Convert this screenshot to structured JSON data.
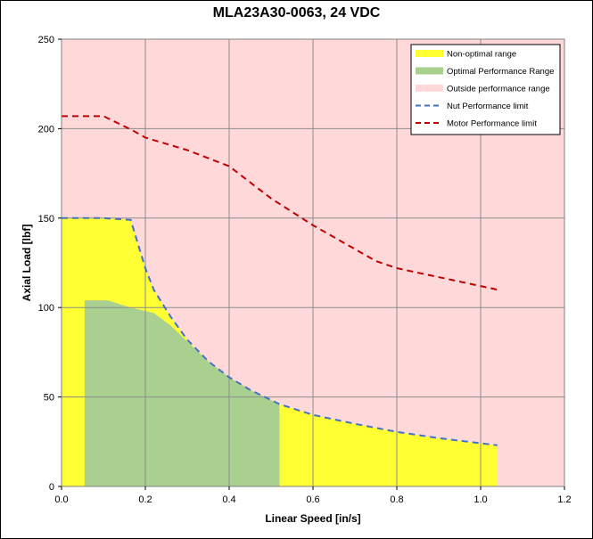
{
  "chart_data": {
    "type": "area",
    "title": "MLA23A30-0063, 24 VDC",
    "xlabel": "Linear Speed [in/s]",
    "ylabel": "Axial Load [lbf]",
    "xlim": [
      0,
      1.2
    ],
    "ylim": [
      0,
      250
    ],
    "x_ticks": [
      "0.0",
      "0.2",
      "0.4",
      "0.6",
      "0.8",
      "1.0",
      "1.2"
    ],
    "y_ticks": [
      "0",
      "50",
      "100",
      "150",
      "200",
      "250"
    ],
    "grid": true,
    "legend_position": "top-right",
    "series": [
      {
        "name": "Non-optimal range",
        "kind": "area",
        "color": "#ffff33",
        "x": [
          0,
          0.1,
          0.165,
          0.2,
          0.22,
          0.26,
          0.3,
          0.35,
          0.4,
          0.45,
          0.52,
          0.6,
          0.7,
          0.8,
          0.9,
          1.04
        ],
        "y": [
          150,
          150,
          149,
          122,
          110,
          95,
          82,
          70,
          61,
          54,
          46,
          40,
          35,
          30.5,
          27,
          23
        ]
      },
      {
        "name": "Optimal Performance Range",
        "kind": "area",
        "color": "#a9d08e",
        "x": [
          0.055,
          0.11,
          0.165,
          0.22,
          0.26,
          0.3,
          0.35,
          0.4,
          0.45,
          0.52
        ],
        "y": [
          104,
          104,
          100,
          97,
          90,
          81,
          70,
          61,
          54,
          46
        ]
      },
      {
        "name": "Outside performance range",
        "kind": "background",
        "color": "#ffd9d9"
      },
      {
        "name": "Nut Performance limit",
        "kind": "line",
        "style": "dashed",
        "color": "#4472c4",
        "x": [
          0,
          0.1,
          0.165,
          0.2,
          0.22,
          0.26,
          0.3,
          0.35,
          0.4,
          0.45,
          0.52,
          0.6,
          0.7,
          0.8,
          0.9,
          1.04
        ],
        "y": [
          150,
          150,
          149,
          122,
          110,
          95,
          82,
          70,
          61,
          54,
          46,
          40,
          35,
          30.5,
          27,
          23
        ]
      },
      {
        "name": "Motor Performance limit",
        "kind": "line",
        "style": "dashed",
        "color": "#c00000",
        "x": [
          0,
          0.1,
          0.17,
          0.2,
          0.3,
          0.4,
          0.5,
          0.6,
          0.75,
          0.8,
          0.9,
          1.04
        ],
        "y": [
          207,
          207,
          199,
          195,
          188,
          179,
          161,
          146,
          126,
          122,
          117,
          110
        ]
      }
    ]
  }
}
